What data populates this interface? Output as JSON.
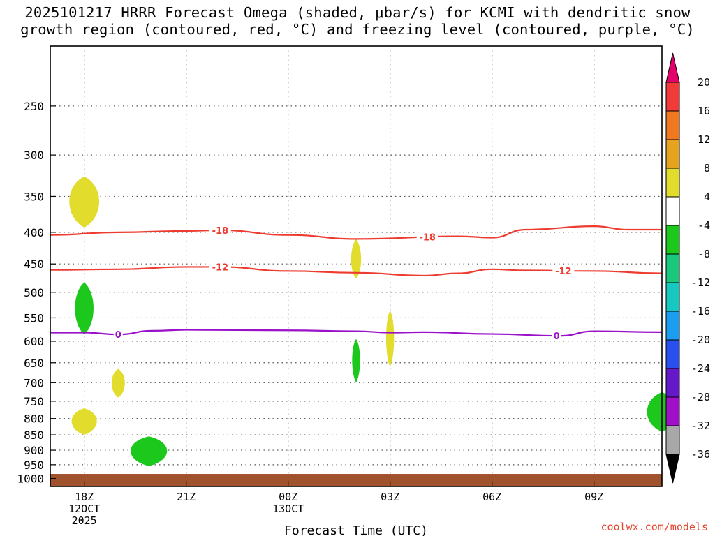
{
  "chart_data": {
    "type": "time-height cross section",
    "title_lines": [
      "2025101217 HRRR Forecast Omega (shaded, μbar/s) for KCMI with dendritic snow",
      "growth region (contoured, red, °C) and freezing level (contoured, purple, °C)"
    ],
    "xlabel": "Forecast Time (UTC)",
    "ylabel": "",
    "x_unit": "hours after 2025-10-12 17Z",
    "xlim": [
      0,
      18
    ],
    "ylim_hpa": [
      1030,
      200
    ],
    "y_scale": "log-pressure",
    "grid": true,
    "y_ticks": [
      250,
      300,
      350,
      400,
      450,
      500,
      550,
      600,
      650,
      700,
      750,
      800,
      850,
      900,
      950,
      1000
    ],
    "x_ticks": [
      {
        "x": 1,
        "lines": [
          "18Z",
          "12OCT",
          "2025"
        ]
      },
      {
        "x": 4,
        "lines": [
          "21Z"
        ]
      },
      {
        "x": 7,
        "lines": [
          "00Z",
          "13OCT"
        ]
      },
      {
        "x": 10,
        "lines": [
          "03Z"
        ]
      },
      {
        "x": 13,
        "lines": [
          "06Z"
        ]
      },
      {
        "x": 16,
        "lines": [
          "09Z"
        ]
      }
    ],
    "contours": [
      {
        "name": "dendritic -18C",
        "color": "#ee3b2f",
        "label": "-18",
        "points": [
          [
            0,
            404
          ],
          [
            2,
            400
          ],
          [
            4,
            398
          ],
          [
            5,
            397
          ],
          [
            7,
            404
          ],
          [
            9,
            410
          ],
          [
            12,
            406
          ],
          [
            13,
            408
          ],
          [
            14,
            396
          ],
          [
            16,
            391
          ],
          [
            17,
            396
          ],
          [
            18,
            396
          ]
        ],
        "label_x": [
          5,
          11.1
        ]
      },
      {
        "name": "dendritic -12C",
        "color": "#ee3b2f",
        "label": "-12",
        "points": [
          [
            0,
            460
          ],
          [
            2,
            459
          ],
          [
            4,
            455
          ],
          [
            5,
            455
          ],
          [
            7,
            462
          ],
          [
            9,
            465
          ],
          [
            11,
            470
          ],
          [
            12,
            466
          ],
          [
            13,
            459
          ],
          [
            14,
            461
          ],
          [
            16,
            462
          ],
          [
            18,
            466
          ]
        ],
        "label_x": [
          5,
          15.1
        ]
      },
      {
        "name": "freezing level 0C",
        "color": "#9b10c9",
        "label": "0",
        "points": [
          [
            0,
            581
          ],
          [
            1,
            581
          ],
          [
            2,
            585
          ],
          [
            3,
            577
          ],
          [
            4,
            575
          ],
          [
            7,
            576
          ],
          [
            9,
            578
          ],
          [
            10,
            581
          ],
          [
            11,
            580
          ],
          [
            13,
            584
          ],
          [
            15,
            588
          ],
          [
            16,
            578
          ],
          [
            18,
            580
          ]
        ],
        "label_x": [
          2,
          14.9
        ]
      }
    ],
    "omega_regions": [
      {
        "x": 1.0,
        "p": 355,
        "rx": 0.45,
        "rp_top": 30,
        "rp_bottom": 38,
        "value_range": "4 to 8",
        "color": "#e2dc2c"
      },
      {
        "x": 1.0,
        "p": 530,
        "rx": 0.28,
        "rp_top": 48,
        "rp_bottom": 55,
        "value_range": "-8 to -4",
        "color": "#1cc81c"
      },
      {
        "x": 2.0,
        "p": 700,
        "rx": 0.2,
        "rp_top": 35,
        "rp_bottom": 40,
        "value_range": "4 to 8",
        "color": "#e2dc2c"
      },
      {
        "x": 1.0,
        "p": 805,
        "rx": 0.38,
        "rp_top": 35,
        "rp_bottom": 45,
        "value_range": "4 to 8",
        "color": "#e2dc2c"
      },
      {
        "x": 2.9,
        "p": 900,
        "rx": 0.55,
        "rp_top": 45,
        "rp_bottom": 55,
        "value_range": "-8 to -4",
        "color": "#1cc81c"
      },
      {
        "x": 9.0,
        "p": 445,
        "rx": 0.15,
        "rp_top": 35,
        "rp_bottom": 30,
        "value_range": "4 to 8",
        "color": "#e2dc2c"
      },
      {
        "x": 10.0,
        "p": 590,
        "rx": 0.12,
        "rp_top": 55,
        "rp_bottom": 70,
        "value_range": "4 to 8",
        "color": "#e2dc2c"
      },
      {
        "x": 9.0,
        "p": 640,
        "rx": 0.12,
        "rp_top": 45,
        "rp_bottom": 60,
        "value_range": "-8 to -4",
        "color": "#1cc81c"
      },
      {
        "x": 18.0,
        "p": 780,
        "rx": 0.45,
        "rp_top": 55,
        "rp_bottom": 60,
        "value_range": "-8 to -4",
        "color": "#1cc81c"
      }
    ],
    "ground": {
      "p_top": 983,
      "color": "#a0522d"
    },
    "colorbar": {
      "labels": [
        "20",
        "16",
        "12",
        "8",
        "4",
        "-4",
        "-8",
        "-12",
        "-16",
        "-20",
        "-24",
        "-28",
        "-32",
        "-36"
      ],
      "colors": [
        "#f23a3a",
        "#f07820",
        "#e6a320",
        "#e2dc2c",
        "#ffffff",
        "#1cc81c",
        "#19c87d",
        "#17c8c0",
        "#1c9ef0",
        "#2850ef",
        "#6418c8",
        "#a010c8",
        "#a8a8a8"
      ],
      "top_arrow_color": "#e3006b",
      "bottom_arrow_color": "#000000"
    }
  },
  "watermark": "coolwx.com/models"
}
